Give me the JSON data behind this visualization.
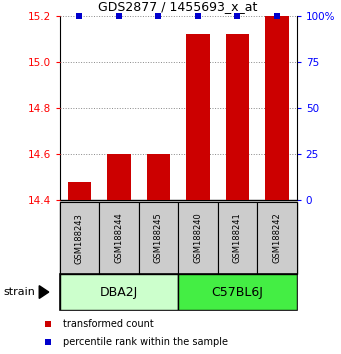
{
  "title": "GDS2877 / 1455693_x_at",
  "samples": [
    "GSM188243",
    "GSM188244",
    "GSM188245",
    "GSM188240",
    "GSM188241",
    "GSM188242"
  ],
  "transformed_counts": [
    14.48,
    14.6,
    14.6,
    15.12,
    15.12,
    15.2
  ],
  "percentile_ranks": [
    100,
    100,
    100,
    100,
    100,
    100
  ],
  "ylim": [
    14.4,
    15.2
  ],
  "y_ticks": [
    14.4,
    14.6,
    14.8,
    15.0,
    15.2
  ],
  "right_ticks": [
    0,
    25,
    50,
    75,
    100
  ],
  "groups": [
    {
      "label": "DBA2J",
      "indices": [
        0,
        1,
        2
      ],
      "color": "#ccffcc"
    },
    {
      "label": "C57BL6J",
      "indices": [
        3,
        4,
        5
      ],
      "color": "#44ee44"
    }
  ],
  "bar_color": "#cc0000",
  "dot_color": "#0000cc",
  "bar_width": 0.6,
  "group_label": "strain",
  "legend_items": [
    {
      "color": "#cc0000",
      "label": "transformed count"
    },
    {
      "color": "#0000cc",
      "label": "percentile rank within the sample"
    }
  ],
  "background_color": "#ffffff",
  "sample_box_color": "#cccccc",
  "grid_color": "#888888",
  "title_fontsize": 9,
  "tick_fontsize": 7.5,
  "sample_fontsize": 6,
  "group_fontsize": 9,
  "legend_fontsize": 7
}
